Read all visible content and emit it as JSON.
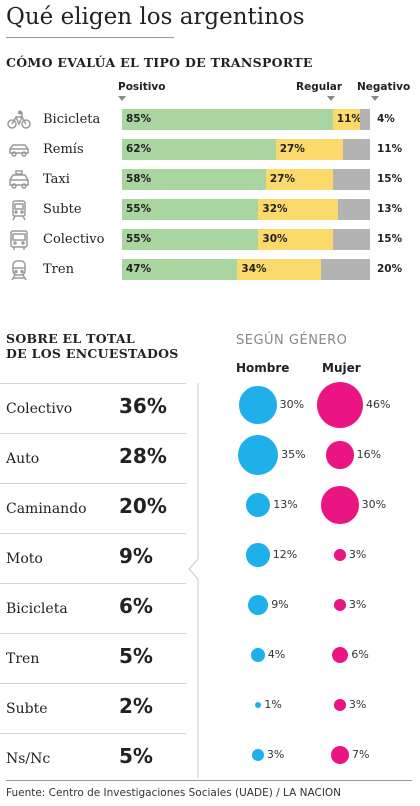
{
  "title": "Qué eligen los argentinos",
  "section1_title": "CÓMO EVALÚA EL TIPO DE TRANSPORTE",
  "section2_title": [
    "SOBRE EL TOTAL",
    "DE LOS ENCUESTADOS"
  ],
  "gender_title": "SEGÚN GÉNERO",
  "source": "Fuente: Centro de Investigaciones Sociales (UADE) / LA NACION",
  "colors": {
    "positivo": "#a8d5a0",
    "regular": "#fbd96b",
    "negativo": "#b3b3b3",
    "hombre": "#1fb0ea",
    "mujer": "#ea1583"
  },
  "chart_data": [
    {
      "type": "bar",
      "stacked": true,
      "orientation": "horizontal",
      "title": "CÓMO EVALÚA EL TIPO DE TRANSPORTE",
      "categories": [
        {
          "name": "Bicicleta",
          "icon": "bicycle-icon"
        },
        {
          "name": "Remís",
          "icon": "car-icon"
        },
        {
          "name": "Taxi",
          "icon": "taxi-icon"
        },
        {
          "name": "Subte",
          "icon": "subway-icon"
        },
        {
          "name": "Colectivo",
          "icon": "bus-icon"
        },
        {
          "name": "Tren",
          "icon": "train-icon"
        }
      ],
      "series": [
        {
          "name": "Positivo",
          "values": [
            85,
            62,
            58,
            55,
            55,
            47
          ],
          "labels": [
            "85%",
            "62%",
            "58%",
            "55%",
            "55%",
            "47%"
          ]
        },
        {
          "name": "Regular",
          "values": [
            11,
            27,
            27,
            32,
            30,
            34
          ],
          "labels": [
            "11%",
            "27%",
            "27%",
            "32%",
            "30%",
            "34%"
          ]
        },
        {
          "name": "Negativo",
          "values": [
            4,
            11,
            15,
            13,
            15,
            20
          ],
          "labels": [
            "4%",
            "11%",
            "15%",
            "13%",
            "15%",
            "20%"
          ]
        }
      ],
      "xlim": [
        0,
        100
      ]
    },
    {
      "type": "table",
      "title": "SOBRE EL TOTAL DE LOS ENCUESTADOS",
      "categories": [
        "Colectivo",
        "Auto",
        "Caminando",
        "Moto",
        "Bicicleta",
        "Tren",
        "Subte",
        "Ns/Nc"
      ],
      "values": [
        36,
        28,
        20,
        9,
        6,
        5,
        2,
        5
      ],
      "labels": [
        "36%",
        "28%",
        "20%",
        "9%",
        "6%",
        "5%",
        "2%",
        "5%"
      ]
    },
    {
      "type": "scatter",
      "encoding": "bubble",
      "title": "SEGÚN GÉNERO",
      "categories": [
        "Colectivo",
        "Auto",
        "Caminando",
        "Moto",
        "Bicicleta",
        "Tren",
        "Subte",
        "Ns/Nc"
      ],
      "series": [
        {
          "name": "Hombre",
          "values": [
            30,
            35,
            13,
            12,
            9,
            4,
            1,
            3
          ],
          "labels": [
            "30%",
            "35%",
            "13%",
            "12%",
            "9%",
            "4%",
            "1%",
            "3%"
          ]
        },
        {
          "name": "Mujer",
          "values": [
            46,
            16,
            30,
            3,
            3,
            6,
            3,
            7
          ],
          "labels": [
            "46%",
            "16%",
            "30%",
            "3%",
            "3%",
            "6%",
            "3%",
            "7%"
          ]
        }
      ]
    }
  ]
}
